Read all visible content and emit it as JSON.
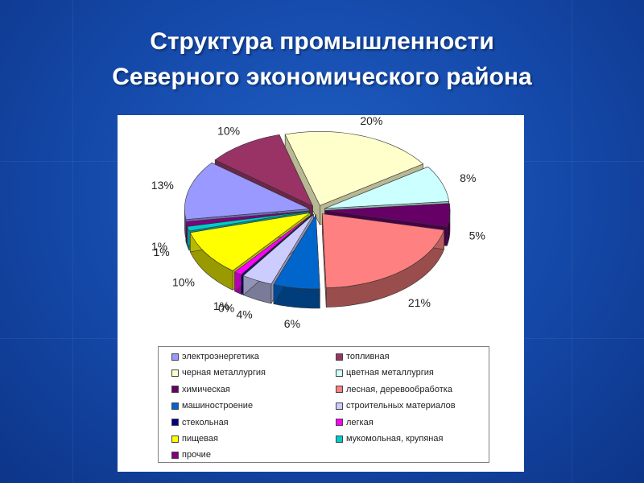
{
  "slide": {
    "title_line1": "Структура промышленности",
    "title_line2": "Северного экономического района"
  },
  "chart_data": {
    "type": "pie",
    "title": "",
    "style": "3d-exploded",
    "legend_position": "bottom",
    "legend": [
      "электроэнергетика",
      "топливная",
      "черная металлургия",
      "цветная металлургия",
      "химическая",
      "лесная, деревообработка",
      "машиностроение",
      "строительных материалов",
      "стекольная",
      "легкая",
      "пищевая",
      "мукомольная, крупяная",
      "прочие"
    ],
    "slices": [
      {
        "name": "черная металлургия",
        "value": 20,
        "label": "20%",
        "color": "#FFFFCC"
      },
      {
        "name": "цветная металлургия",
        "value": 8,
        "label": "8%",
        "color": "#CCFFFF"
      },
      {
        "name": "химическая",
        "value": 5,
        "label": "5%",
        "color": "#660066"
      },
      {
        "name": "лесная, деревообработка",
        "value": 21,
        "label": "21%",
        "color": "#FF8080"
      },
      {
        "name": "машиностроение",
        "value": 6,
        "label": "6%",
        "color": "#0066CC"
      },
      {
        "name": "строительных материалов",
        "value": 4,
        "label": "4%",
        "color": "#CCCCFF"
      },
      {
        "name": "стекольная",
        "value": 0,
        "label": "0%",
        "color": "#000080"
      },
      {
        "name": "легкая",
        "value": 1,
        "label": "1%",
        "color": "#FF00FF"
      },
      {
        "name": "пищевая",
        "value": 10,
        "label": "10%",
        "color": "#FFFF00"
      },
      {
        "name": "мукомольная, крупяная",
        "value": 1,
        "label": "1%",
        "color": "#00CCCC"
      },
      {
        "name": "прочие",
        "value": 1,
        "label": "1%",
        "color": "#800080"
      },
      {
        "name": "электроэнергетика",
        "value": 13,
        "label": "13%",
        "color": "#9999FF"
      },
      {
        "name": "топливная",
        "value": 10,
        "label": "10%",
        "color": "#993366"
      }
    ]
  }
}
